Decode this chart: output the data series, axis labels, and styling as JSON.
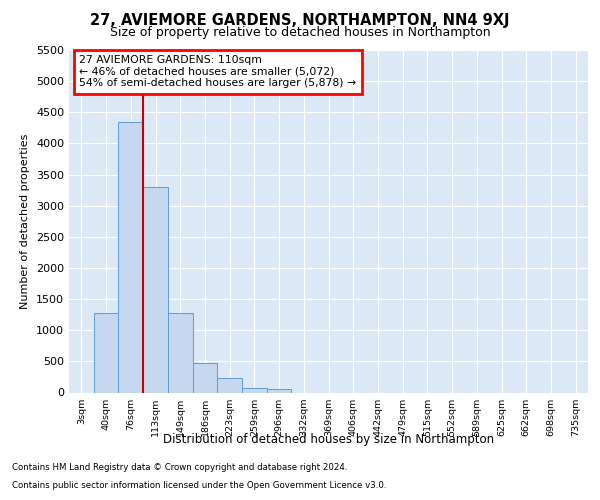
{
  "title1": "27, AVIEMORE GARDENS, NORTHAMPTON, NN4 9XJ",
  "title2": "Size of property relative to detached houses in Northampton",
  "xlabel": "Distribution of detached houses by size in Northampton",
  "ylabel": "Number of detached properties",
  "footnote1": "Contains HM Land Registry data © Crown copyright and database right 2024.",
  "footnote2": "Contains public sector information licensed under the Open Government Licence v3.0.",
  "bar_labels": [
    "3sqm",
    "40sqm",
    "76sqm",
    "113sqm",
    "149sqm",
    "186sqm",
    "223sqm",
    "259sqm",
    "296sqm",
    "332sqm",
    "369sqm",
    "406sqm",
    "442sqm",
    "479sqm",
    "515sqm",
    "552sqm",
    "589sqm",
    "625sqm",
    "662sqm",
    "698sqm",
    "735sqm"
  ],
  "bar_values": [
    0,
    1275,
    4350,
    3300,
    1275,
    475,
    225,
    75,
    50,
    0,
    0,
    0,
    0,
    0,
    0,
    0,
    0,
    0,
    0,
    0,
    0
  ],
  "bar_color": "#c5d8f0",
  "bar_edge_color": "#5b9bd5",
  "vline_index": 3,
  "vline_color": "#cc0000",
  "annotation_line1": "27 AVIEMORE GARDENS: 110sqm",
  "annotation_line2": "← 46% of detached houses are smaller (5,072)",
  "annotation_line3": "54% of semi-detached houses are larger (5,878) →",
  "ylim": [
    0,
    5500
  ],
  "yticks": [
    0,
    500,
    1000,
    1500,
    2000,
    2500,
    3000,
    3500,
    4000,
    4500,
    5000,
    5500
  ],
  "bg_color": "#dce8f5",
  "fig_bg": "#ffffff"
}
